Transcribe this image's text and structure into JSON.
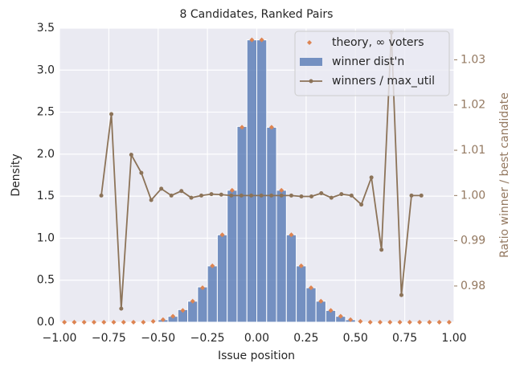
{
  "chart_data": {
    "type": "histogram",
    "title": "8 Candidates, Ranked Pairs",
    "xlabel": "Issue position",
    "ylabel": "Density",
    "y2label": "Ratio winner / best candidate",
    "bins": [
      -1.0,
      -0.95,
      -0.9,
      -0.85,
      -0.8,
      -0.75,
      -0.7,
      -0.65,
      -0.6,
      -0.55,
      -0.5,
      -0.45,
      -0.4,
      -0.35,
      -0.3,
      -0.25,
      -0.2,
      -0.15,
      -0.1,
      -0.05,
      0.0,
      0.05,
      0.1,
      0.15,
      0.2,
      0.25,
      0.3,
      0.35,
      0.4,
      0.45,
      0.5,
      0.55,
      0.6,
      0.65,
      0.7,
      0.75,
      0.8,
      0.85,
      0.9,
      0.95,
      1.0
    ],
    "xlim": [
      -1.0,
      1.0
    ],
    "ylim": [
      0,
      3.5
    ],
    "y2lim": [
      0.972,
      1.037
    ],
    "xticks": [
      {
        "value": -1.0,
        "label": "−1.00"
      },
      {
        "value": -0.75,
        "label": "−0.75"
      },
      {
        "value": -0.5,
        "label": "−0.50"
      },
      {
        "value": -0.25,
        "label": "−0.25"
      },
      {
        "value": 0,
        "label": "0.00"
      },
      {
        "value": 0.25,
        "label": "0.25"
      },
      {
        "value": 0.5,
        "label": "0.50"
      },
      {
        "value": 0.75,
        "label": "0.75"
      },
      {
        "value": 1.0,
        "label": "1.00"
      }
    ],
    "yticks": [
      {
        "value": 0,
        "label": "0.0"
      },
      0.5,
      {
        "value": 1,
        "label": "1.0"
      },
      1.5,
      {
        "value": 2,
        "label": "2.0"
      },
      2.5,
      {
        "value": 3,
        "label": "3.0"
      },
      3.5
    ],
    "y2ticks": [
      0.98,
      0.99,
      {
        "value": 1,
        "label": "1.00"
      },
      1.01,
      1.02,
      1.03
    ],
    "grid": true,
    "legend": "upper right",
    "series": [
      {
        "name": "theory, ∞ voters",
        "type": "scatter",
        "color": "#dd8452",
        "x": [
          -0.975,
          -0.925,
          -0.875,
          -0.825,
          -0.775,
          -0.725,
          -0.675,
          -0.625,
          -0.575,
          -0.525,
          -0.475,
          -0.425,
          -0.375,
          -0.325,
          -0.275,
          -0.225,
          -0.175,
          -0.125,
          -0.075,
          -0.025,
          0.025,
          0.075,
          0.125,
          0.175,
          0.225,
          0.275,
          0.325,
          0.375,
          0.425,
          0.475,
          0.525,
          0.575,
          0.625,
          0.675,
          0.725,
          0.775,
          0.825,
          0.875,
          0.925,
          0.975
        ],
        "values": [
          0,
          0,
          0,
          0,
          0,
          0,
          0,
          0,
          0,
          0.01,
          0.03,
          0.07,
          0.14,
          0.25,
          0.41,
          0.67,
          1.04,
          1.57,
          2.32,
          3.36,
          3.36,
          2.32,
          1.57,
          1.04,
          0.67,
          0.41,
          0.25,
          0.14,
          0.07,
          0.03,
          0.01,
          0,
          0,
          0,
          0,
          0,
          0,
          0,
          0,
          0
        ]
      },
      {
        "name": "winner dist'n",
        "type": "histogram",
        "color": "#4c72b0",
        "values": [
          0,
          0,
          0,
          0,
          0,
          0,
          0,
          0,
          0,
          0,
          0.03,
          0.07,
          0.15,
          0.25,
          0.42,
          0.67,
          1.04,
          1.57,
          2.33,
          3.36,
          3.36,
          2.32,
          1.57,
          1.04,
          0.67,
          0.41,
          0.25,
          0.14,
          0.07,
          0.03,
          0,
          0,
          0,
          0,
          0,
          0,
          0,
          0,
          0,
          0
        ]
      },
      {
        "name": "winners / max_util",
        "type": "line",
        "axis": "y2",
        "color": "#8c7358",
        "x": [
          -0.788,
          -0.737,
          -0.687,
          -0.636,
          -0.585,
          -0.535,
          -0.484,
          -0.433,
          -0.382,
          -0.332,
          -0.281,
          -0.23,
          -0.18,
          -0.129,
          -0.078,
          -0.028,
          0.023,
          0.074,
          0.125,
          0.175,
          0.226,
          0.277,
          0.327,
          0.378,
          0.429,
          0.48,
          0.53,
          0.581,
          0.632,
          0.682,
          0.733,
          0.784,
          0.834
        ],
        "values": [
          1.0,
          1.018,
          0.975,
          1.009,
          1.005,
          0.999,
          1.0015,
          1.0,
          1.001,
          0.9995,
          1.0,
          1.0003,
          1.0002,
          1.0,
          1.0,
          1.0,
          1.0,
          1.0,
          1.0,
          1.0,
          0.9998,
          0.9998,
          1.0005,
          0.9995,
          1.0003,
          1.0,
          0.998,
          1.004,
          0.988,
          1.036,
          0.978,
          1.0,
          1.0
        ]
      }
    ]
  }
}
